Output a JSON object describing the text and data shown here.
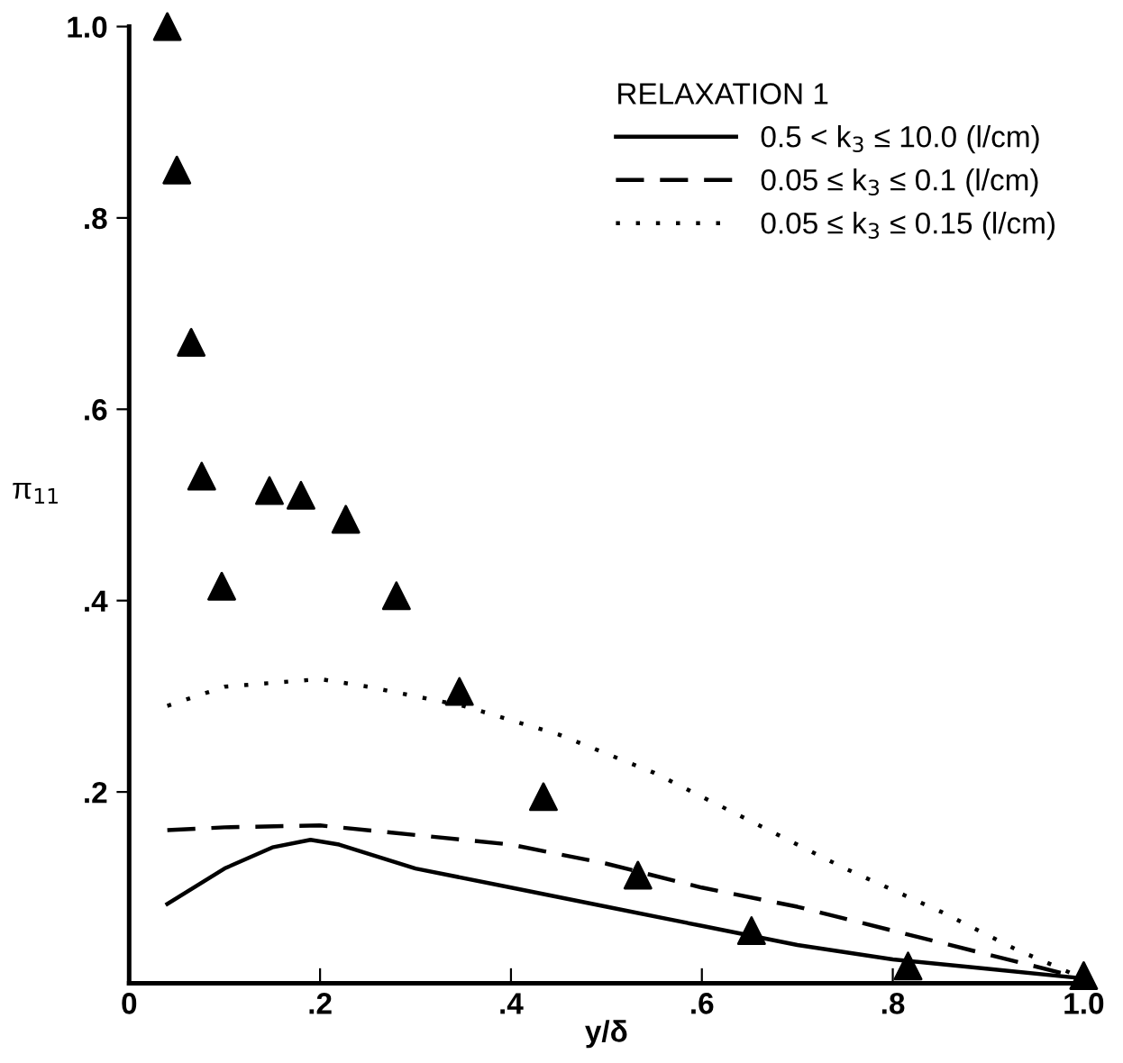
{
  "chart_data": {
    "type": "line",
    "xlabel": "y/δ",
    "ylabel": "π$_{11}$",
    "legend_title": "RELAXATION 1",
    "xlim": [
      0,
      1.0
    ],
    "ylim": [
      0,
      1.0
    ],
    "xticks": [
      0,
      {
        "value": 0.2,
        "label": ".2"
      },
      {
        "value": 0.4,
        "label": ".4"
      },
      {
        "value": 0.6,
        "label": ".6"
      },
      {
        "value": 0.8,
        "label": ".8"
      },
      {
        "value": 1.0,
        "label": "1.0"
      }
    ],
    "yticks": [
      {
        "value": 0.2,
        "label": ".2"
      },
      {
        "value": 0.4,
        "label": ".4"
      },
      {
        "value": 0.6,
        "label": ".6"
      },
      {
        "value": 0.8,
        "label": ".8"
      },
      {
        "value": 1.0,
        "label": "1.0"
      }
    ],
    "grid": false,
    "legend": "top right",
    "series": [
      {
        "name": "0.5 < k$_{3}$ ≤ 10.0 (l/cm)",
        "color": "#000000",
        "line_style": "solid",
        "marker": "none",
        "x": [
          0.04,
          0.1,
          0.15,
          0.19,
          0.22,
          0.3,
          0.4,
          0.5,
          0.6,
          0.7,
          0.8,
          0.9,
          1.0
        ],
        "values": [
          0.083,
          0.12,
          0.142,
          0.15,
          0.145,
          0.12,
          0.1,
          0.08,
          0.06,
          0.04,
          0.025,
          0.015,
          0.005
        ]
      },
      {
        "name": "0.05 ≤ k$_{3}$ ≤ 0.1 (l/cm)",
        "color": "#000000",
        "line_style": "dashed",
        "marker": "none",
        "x": [
          0.04,
          0.1,
          0.2,
          0.3,
          0.4,
          0.5,
          0.6,
          0.7,
          0.8,
          0.9,
          1.0
        ],
        "values": [
          0.16,
          0.163,
          0.165,
          0.155,
          0.145,
          0.125,
          0.1,
          0.08,
          0.055,
          0.03,
          0.005
        ]
      },
      {
        "name": "0.05 ≤ k$_{3}$ ≤ 0.15 (l/cm)",
        "color": "#000000",
        "line_style": "dotted",
        "marker": "none",
        "x": [
          0.04,
          0.1,
          0.2,
          0.25,
          0.35,
          0.45,
          0.55,
          0.65,
          0.75,
          0.85,
          0.93,
          1.0
        ],
        "values": [
          0.29,
          0.31,
          0.318,
          0.31,
          0.29,
          0.26,
          0.22,
          0.17,
          0.12,
          0.075,
          0.035,
          0.005
        ]
      },
      {
        "type": "scatter",
        "color": "#000000",
        "marker": "triangle",
        "x": [
          0.04,
          0.05,
          0.065,
          0.076,
          0.097,
          0.147,
          0.18,
          0.227,
          0.28,
          0.346,
          0.434,
          0.533,
          0.652,
          0.816,
          1.0
        ],
        "values": [
          1.0,
          0.85,
          0.67,
          0.53,
          0.415,
          0.515,
          0.51,
          0.485,
          0.405,
          0.305,
          0.195,
          0.113,
          0.055,
          0.018,
          0.008
        ]
      }
    ]
  }
}
